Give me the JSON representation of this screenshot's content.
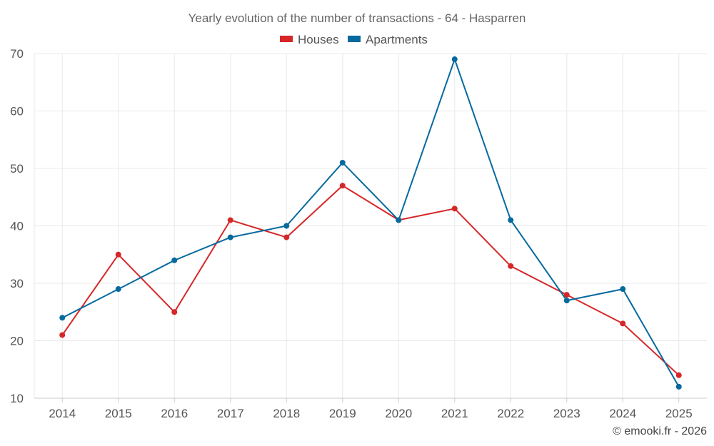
{
  "chart_data": {
    "type": "line",
    "title": "Yearly evolution of the number of transactions - 64 - Hasparren",
    "xlabel": "",
    "ylabel": "",
    "categories": [
      "2014",
      "2015",
      "2016",
      "2017",
      "2018",
      "2019",
      "2020",
      "2021",
      "2022",
      "2023",
      "2024",
      "2025"
    ],
    "ylim": [
      10,
      70
    ],
    "yticks": [
      10,
      20,
      30,
      40,
      50,
      60,
      70
    ],
    "grid": true,
    "legend_position": "top-center",
    "series": [
      {
        "name": "Houses",
        "color": "#d62728",
        "values": [
          21,
          35,
          25,
          41,
          38,
          47,
          41,
          43,
          33,
          28,
          23,
          14
        ]
      },
      {
        "name": "Apartments",
        "color": "#066a9e",
        "values": [
          24,
          29,
          34,
          38,
          40,
          51,
          41,
          69,
          41,
          27,
          29,
          12
        ]
      }
    ]
  },
  "credit": "© emooki.fr - 2026"
}
